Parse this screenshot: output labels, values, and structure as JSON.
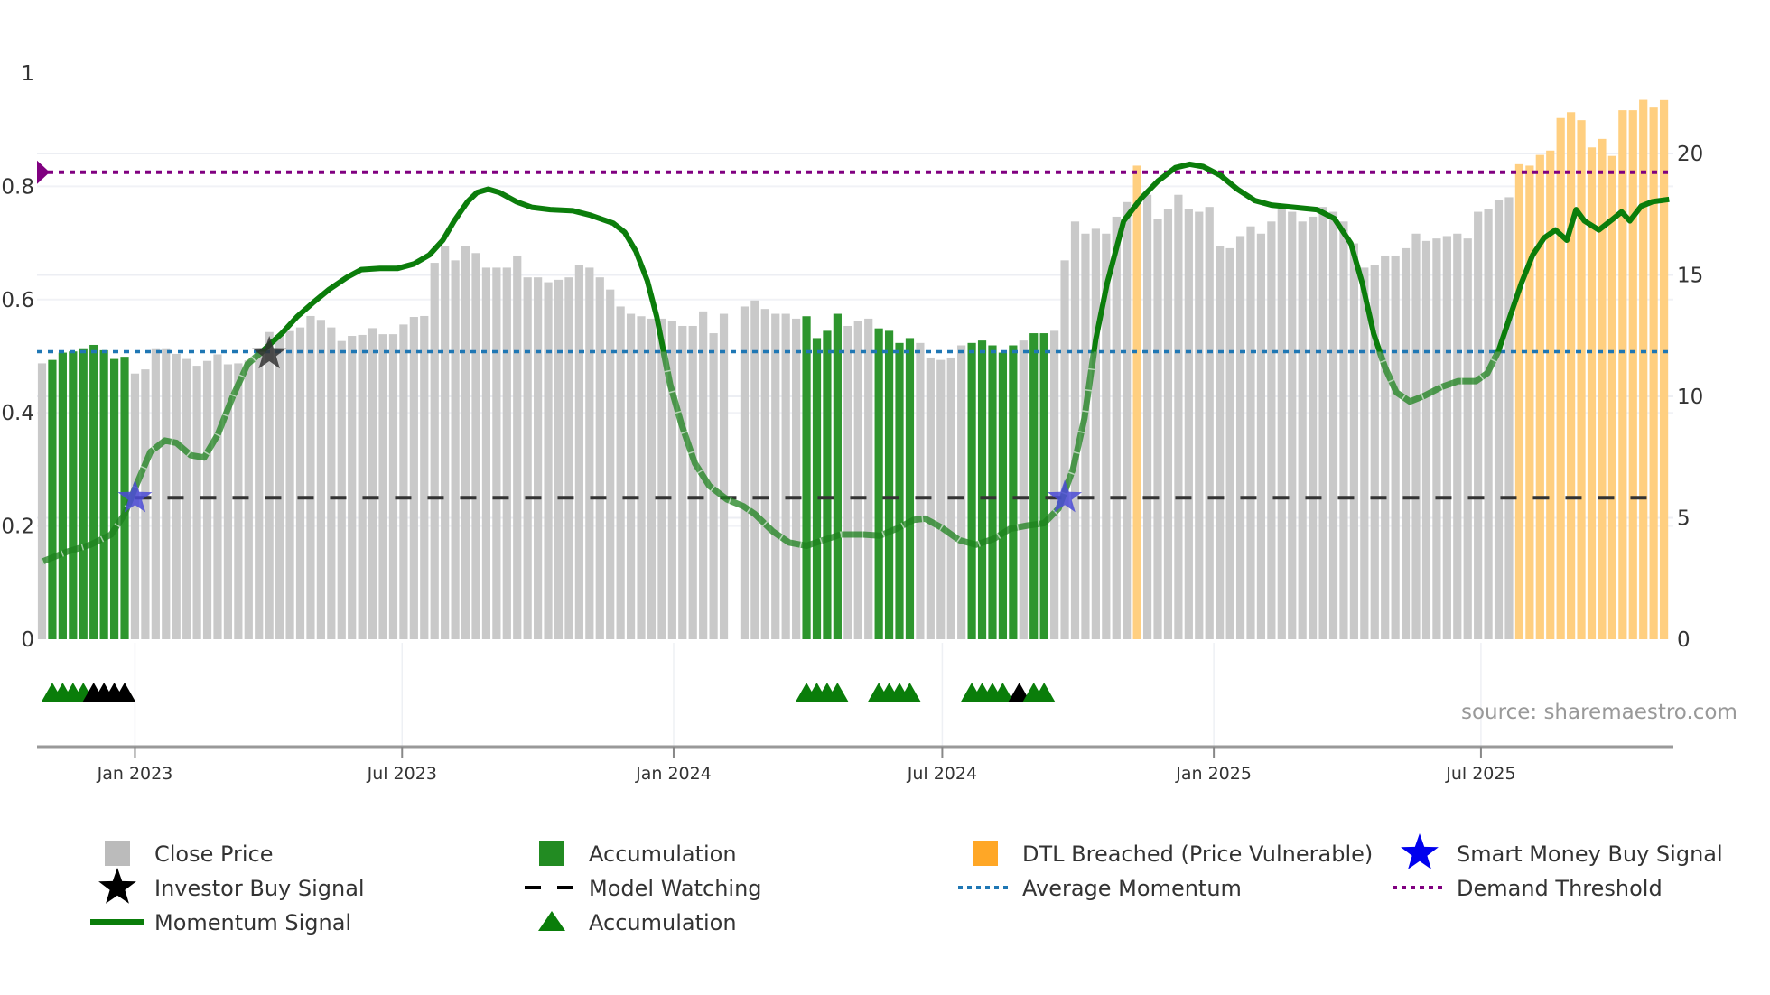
{
  "chart_data": {
    "type": "bar",
    "title": "",
    "source": "source: sharemaestro.com",
    "x_start": "2022-10-30",
    "x_interval_days": 7,
    "x_ticks": [
      {
        "date": "2023-01-01",
        "label": "Jan 2023"
      },
      {
        "date": "2023-07-01",
        "label": "Jul 2023"
      },
      {
        "date": "2024-01-01",
        "label": "Jan 2024"
      },
      {
        "date": "2024-07-01",
        "label": "Jul 2024"
      },
      {
        "date": "2025-01-01",
        "label": "Jan 2025"
      },
      {
        "date": "2025-07-01",
        "label": "Jul 2025"
      }
    ],
    "left_axis": {
      "range": [
        0,
        1
      ],
      "ticks": [
        "0",
        "0.2",
        "0.4",
        "0.6",
        "0.8",
        "1"
      ],
      "tick_values": [
        0,
        0.2,
        0.4,
        0.6,
        0.8,
        1
      ]
    },
    "right_axis": {
      "range": [
        0,
        23.3
      ],
      "ticks": [
        "0",
        "5",
        "10",
        "15",
        "20"
      ],
      "tick_values": [
        0,
        5,
        10,
        15,
        20
      ]
    },
    "close_price": [
      11.36,
      11.5,
      11.8,
      11.85,
      11.98,
      12.12,
      11.9,
      11.54,
      11.63,
      10.94,
      11.11,
      11.98,
      11.98,
      11.75,
      11.54,
      11.26,
      11.46,
      11.73,
      11.32,
      11.36,
      11.48,
      11.79,
      12.65,
      12.53,
      12.69,
      12.84,
      13.31,
      13.15,
      12.84,
      12.28,
      12.49,
      12.53,
      12.81,
      12.56,
      12.56,
      12.96,
      13.27,
      13.31,
      15.5,
      16.2,
      15.6,
      16.2,
      15.9,
      15.3,
      15.3,
      15.3,
      15.8,
      14.9,
      14.9,
      14.7,
      14.8,
      14.9,
      15.4,
      15.3,
      14.9,
      14.4,
      13.7,
      13.4,
      13.3,
      13.2,
      13.2,
      13.1,
      12.9,
      12.9,
      13.5,
      12.6,
      13.4,
      null,
      13.7,
      13.95,
      13.6,
      13.4,
      13.4,
      13.2,
      13.3,
      12.4,
      12.7,
      13.4,
      12.9,
      13.1,
      13.2,
      12.8,
      12.7,
      12.2,
      12.4,
      12.2,
      11.6,
      11.5,
      11.6,
      12.1,
      12.2,
      12.3,
      12.1,
      11.8,
      12.1,
      12.3,
      12.6,
      12.6,
      12.7,
      15.6,
      17.2,
      16.7,
      16.9,
      16.7,
      17.4,
      18.0,
      19.5,
      18.3,
      17.3,
      17.7,
      18.3,
      17.7,
      17.6,
      17.8,
      16.2,
      16.1,
      16.6,
      17.0,
      16.7,
      17.2,
      17.7,
      17.6,
      17.2,
      17.4,
      17.8,
      17.6,
      17.2,
      16.3,
      15.3,
      15.4,
      15.8,
      15.8,
      16.1,
      16.7,
      16.4,
      16.5,
      16.6,
      16.7,
      16.5,
      17.6,
      17.7,
      18.1,
      18.2,
      19.56,
      19.5,
      19.94,
      20.12,
      21.46,
      21.7,
      21.37,
      20.25,
      20.6,
      19.9,
      21.78,
      21.78,
      22.21,
      21.89,
      22.2
    ],
    "bar_segments": [
      {
        "from": 1,
        "to": 8,
        "type": "accumulation"
      },
      {
        "from": 74,
        "to": 77,
        "type": "accumulation"
      },
      {
        "from": 81,
        "to": 84,
        "type": "accumulation"
      },
      {
        "from": 90,
        "to": 94,
        "type": "accumulation"
      },
      {
        "from": 96,
        "to": 97,
        "type": "accumulation"
      },
      {
        "from": 106,
        "to": 106,
        "type": "dtl_breached"
      },
      {
        "from": 143,
        "to": 157,
        "type": "dtl_breached"
      }
    ],
    "momentum_signal": [
      [
        0,
        0.137
      ],
      [
        2.5,
        0.155
      ],
      [
        4.7,
        0.167
      ],
      [
        6.7,
        0.185
      ],
      [
        8,
        0.221
      ],
      [
        9.1,
        0.271
      ],
      [
        10.5,
        0.331
      ],
      [
        11.9,
        0.351
      ],
      [
        13,
        0.347
      ],
      [
        14.4,
        0.325
      ],
      [
        15.7,
        0.321
      ],
      [
        17,
        0.361
      ],
      [
        18.5,
        0.43
      ],
      [
        19.9,
        0.486
      ],
      [
        21.4,
        0.51
      ],
      [
        23.2,
        0.54
      ],
      [
        24.7,
        0.57
      ],
      [
        26.2,
        0.594
      ],
      [
        27.8,
        0.618
      ],
      [
        29.5,
        0.639
      ],
      [
        30.9,
        0.653
      ],
      [
        32.7,
        0.655
      ],
      [
        34.4,
        0.655
      ],
      [
        36,
        0.663
      ],
      [
        37.5,
        0.679
      ],
      [
        38.8,
        0.705
      ],
      [
        39.9,
        0.739
      ],
      [
        41.2,
        0.773
      ],
      [
        42.1,
        0.789
      ],
      [
        43.2,
        0.795
      ],
      [
        44.3,
        0.789
      ],
      [
        45.9,
        0.773
      ],
      [
        47.4,
        0.763
      ],
      [
        49.2,
        0.759
      ],
      [
        51.4,
        0.757
      ],
      [
        53.1,
        0.749
      ],
      [
        55.3,
        0.735
      ],
      [
        56.4,
        0.719
      ],
      [
        57.5,
        0.685
      ],
      [
        58.6,
        0.633
      ],
      [
        59.5,
        0.57
      ],
      [
        60.8,
        0.45
      ],
      [
        61.9,
        0.38
      ],
      [
        63.2,
        0.311
      ],
      [
        64.6,
        0.271
      ],
      [
        66.3,
        0.247
      ],
      [
        67.9,
        0.235
      ],
      [
        69,
        0.221
      ],
      [
        70.7,
        0.191
      ],
      [
        72.3,
        0.171
      ],
      [
        74,
        0.165
      ],
      [
        75.6,
        0.175
      ],
      [
        77.3,
        0.185
      ],
      [
        79.5,
        0.185
      ],
      [
        81.1,
        0.183
      ],
      [
        82.7,
        0.195
      ],
      [
        84.4,
        0.211
      ],
      [
        85.5,
        0.213
      ],
      [
        87.1,
        0.197
      ],
      [
        88.8,
        0.175
      ],
      [
        90.4,
        0.167
      ],
      [
        92.1,
        0.177
      ],
      [
        93.7,
        0.195
      ],
      [
        95.4,
        0.201
      ],
      [
        97,
        0.205
      ],
      [
        98.4,
        0.231
      ],
      [
        99.8,
        0.301
      ],
      [
        100.9,
        0.39
      ],
      [
        102,
        0.53
      ],
      [
        103.1,
        0.629
      ],
      [
        104.7,
        0.739
      ],
      [
        106.4,
        0.779
      ],
      [
        108,
        0.809
      ],
      [
        109.7,
        0.833
      ],
      [
        111.1,
        0.839
      ],
      [
        112.4,
        0.835
      ],
      [
        114.1,
        0.819
      ],
      [
        115.7,
        0.795
      ],
      [
        117.4,
        0.775
      ],
      [
        119,
        0.767
      ],
      [
        121.2,
        0.763
      ],
      [
        123.4,
        0.759
      ],
      [
        125.1,
        0.743
      ],
      [
        126.7,
        0.699
      ],
      [
        127.8,
        0.629
      ],
      [
        128.9,
        0.54
      ],
      [
        130,
        0.48
      ],
      [
        131.1,
        0.436
      ],
      [
        132.4,
        0.42
      ],
      [
        133.8,
        0.43
      ],
      [
        135.5,
        0.446
      ],
      [
        137.1,
        0.456
      ],
      [
        138.8,
        0.456
      ],
      [
        139.9,
        0.47
      ],
      [
        141,
        0.51
      ],
      [
        142.1,
        0.57
      ],
      [
        143.2,
        0.629
      ],
      [
        144.3,
        0.679
      ],
      [
        145.4,
        0.709
      ],
      [
        146.5,
        0.723
      ],
      [
        147.6,
        0.705
      ],
      [
        148.5,
        0.759
      ],
      [
        149.3,
        0.739
      ],
      [
        150.7,
        0.723
      ],
      [
        152.1,
        0.743
      ],
      [
        152.9,
        0.755
      ],
      [
        153.7,
        0.739
      ],
      [
        154.8,
        0.765
      ],
      [
        155.9,
        0.773
      ],
      [
        157.5,
        0.777
      ]
    ],
    "average_momentum": 0.508,
    "demand_threshold": 0.825,
    "model_watching": {
      "value": 0.25,
      "from_week": 9
    },
    "smart_money_buy_signals": [
      {
        "week": 9,
        "value": 0.25
      },
      {
        "week": 99,
        "value": 0.25
      }
    ],
    "investor_buy_signals": [
      {
        "week": 22,
        "value": 0.504
      }
    ],
    "accumulation_markers": [
      {
        "week": 1,
        "color": "green"
      },
      {
        "week": 2,
        "color": "green"
      },
      {
        "week": 3,
        "color": "green"
      },
      {
        "week": 4,
        "color": "green"
      },
      {
        "week": 5,
        "color": "black"
      },
      {
        "week": 6,
        "color": "black"
      },
      {
        "week": 7,
        "color": "black"
      },
      {
        "week": 8,
        "color": "black"
      },
      {
        "week": 74,
        "color": "green"
      },
      {
        "week": 75,
        "color": "green"
      },
      {
        "week": 76,
        "color": "green"
      },
      {
        "week": 77,
        "color": "green"
      },
      {
        "week": 81,
        "color": "green"
      },
      {
        "week": 82,
        "color": "green"
      },
      {
        "week": 83,
        "color": "green"
      },
      {
        "week": 84,
        "color": "green"
      },
      {
        "week": 90,
        "color": "green"
      },
      {
        "week": 91,
        "color": "green"
      },
      {
        "week": 92,
        "color": "green"
      },
      {
        "week": 93,
        "color": "green"
      },
      {
        "week": 94.6,
        "color": "black"
      },
      {
        "week": 96,
        "color": "green"
      },
      {
        "week": 97,
        "color": "green"
      }
    ],
    "colors": {
      "close_price": "#c9c9c9",
      "accumulation": "#2e962e",
      "dtl_breached": "#ffcf80",
      "momentum": "#0b7d0b",
      "average_momentum": "#1f77b4",
      "demand_threshold": "#800080",
      "model_watching": "#333333",
      "smart_money": "#4b4bd6",
      "investor": "#333333"
    },
    "legend": [
      {
        "label": "Close Price",
        "icon": "gray-square"
      },
      {
        "label": "Accumulation",
        "icon": "green-square"
      },
      {
        "label": "DTL Breached (Price Vulnerable)",
        "icon": "orange-square"
      },
      {
        "label": "Smart Money Buy Signal",
        "icon": "blue-star"
      },
      {
        "label": "Investor Buy Signal",
        "icon": "black-star"
      },
      {
        "label": "Model Watching",
        "icon": "black-dash"
      },
      {
        "label": "Average Momentum",
        "icon": "blue-dots"
      },
      {
        "label": "Demand Threshold",
        "icon": "purple-dots"
      },
      {
        "label": "Momentum Signal",
        "icon": "green-line"
      },
      {
        "label": "Accumulation",
        "icon": "green-triangle"
      }
    ],
    "legend_placement": "bottom"
  }
}
